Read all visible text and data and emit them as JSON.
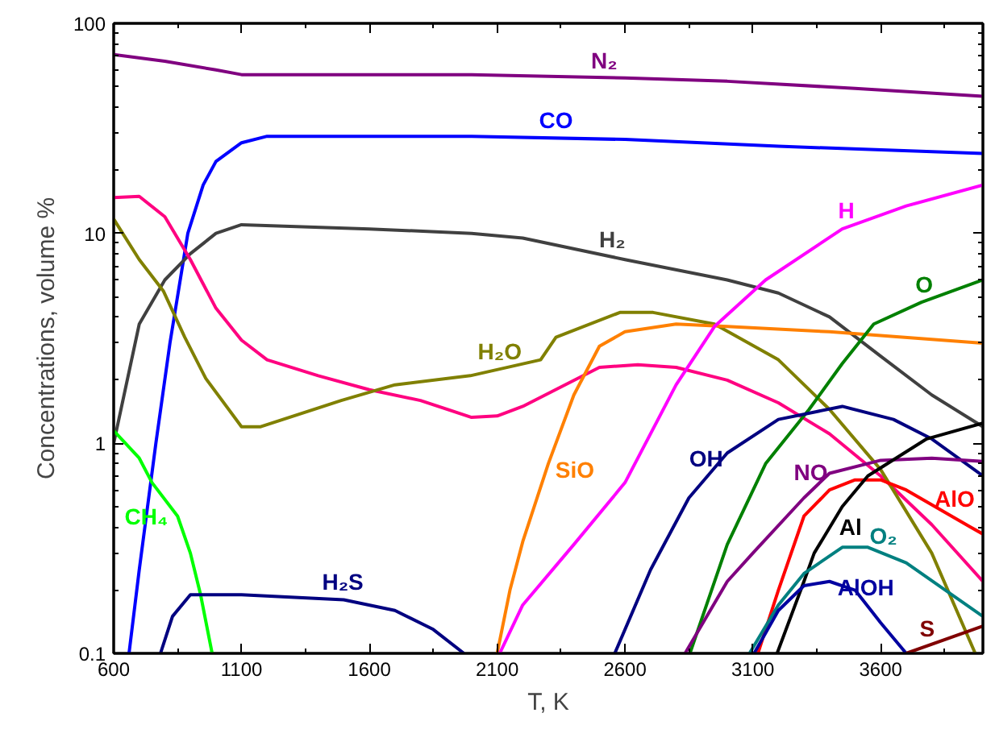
{
  "chart_data": {
    "type": "line",
    "xlabel": "T, K",
    "ylabel": "Concentrations, volume %",
    "log": "y",
    "grid": false,
    "marker": "none",
    "line_style": "solid",
    "xlim": [
      600,
      4000
    ],
    "xticks": [
      600,
      1100,
      1600,
      2100,
      2600,
      3100,
      3600
    ],
    "ylim": [
      0.1,
      100
    ],
    "yticks": [
      0.1,
      1,
      10,
      100
    ],
    "series": [
      {
        "color": "#800080",
        "x": [
          600,
          800,
          1000,
          1100,
          2000,
          2600,
          3000,
          3500,
          4000
        ],
        "values": [
          71,
          66,
          60,
          57,
          57,
          55,
          53,
          49,
          45
        ]
      },
      {
        "color": "#0000ff",
        "x": [
          660,
          700,
          765,
          820,
          890,
          950,
          1000,
          1100,
          1200,
          2000,
          2600,
          3200,
          4000
        ],
        "values": [
          0.1,
          0.25,
          1,
          3,
          10,
          17,
          22,
          27,
          29,
          29,
          28,
          26,
          24
        ]
      },
      {
        "color": "#404040",
        "x": [
          600,
          700,
          800,
          900,
          1000,
          1100,
          1600,
          2000,
          2200,
          2600,
          3000,
          3200,
          3400,
          3600,
          3800,
          4000
        ],
        "values": [
          1,
          3.7,
          6,
          8,
          10,
          11,
          10.5,
          10,
          9.5,
          7.5,
          6,
          5.2,
          4,
          2.6,
          1.7,
          1.2
        ]
      },
      {
        "color": "#ff0080",
        "x": [
          600,
          700,
          800,
          900,
          1000,
          1100,
          1200,
          1400,
          1600,
          1800,
          2000,
          2100,
          2200,
          2500,
          2650,
          2800,
          3000,
          3200,
          3400,
          3600,
          3800,
          4000
        ],
        "values": [
          14.8,
          15,
          12,
          7.5,
          4.4,
          3.1,
          2.5,
          2.1,
          1.8,
          1.6,
          1.33,
          1.35,
          1.5,
          2.3,
          2.37,
          2.3,
          2,
          1.56,
          1.11,
          0.7,
          0.41,
          0.22
        ]
      },
      {
        "color": "#808000",
        "x": [
          600,
          700,
          795,
          878,
          960,
          1100,
          1175,
          1490,
          1700,
          1995,
          2270,
          2330,
          2580,
          2710,
          2950,
          3200,
          3400,
          3600,
          3800,
          3970
        ],
        "values": [
          11.7,
          7.5,
          5.3,
          3.2,
          2.04,
          1.2,
          1.2,
          1.6,
          1.9,
          2.1,
          2.5,
          3.2,
          4.2,
          4.2,
          3.7,
          2.5,
          1.45,
          0.75,
          0.3,
          0.1
        ]
      },
      {
        "color": "#ff8000",
        "x": [
          2100,
          2150,
          2200,
          2300,
          2400,
          2500,
          2600,
          2800,
          3000,
          3400,
          4000
        ],
        "values": [
          0.1,
          0.2,
          0.34,
          0.8,
          1.7,
          2.9,
          3.4,
          3.7,
          3.6,
          3.4,
          3.0
        ]
      },
      {
        "color": "#ff00ff",
        "x": [
          2110,
          2200,
          2400,
          2600,
          2800,
          2950,
          3150,
          3450,
          3700,
          4000
        ],
        "values": [
          0.1,
          0.17,
          0.33,
          0.65,
          1.9,
          3.6,
          6,
          10.5,
          13.5,
          17
        ]
      },
      {
        "color": "#008000",
        "x": [
          2854,
          3000,
          3150,
          3320,
          3450,
          3573,
          3760,
          4000
        ],
        "values": [
          0.1,
          0.33,
          0.8,
          1.45,
          2.4,
          3.7,
          4.7,
          6
        ]
      },
      {
        "color": "#000080",
        "x": [
          2560,
          2700,
          2850,
          3000,
          3200,
          3450,
          3650,
          3800,
          4000
        ],
        "values": [
          0.1,
          0.25,
          0.55,
          0.9,
          1.3,
          1.5,
          1.3,
          1.05,
          0.7
        ]
      },
      {
        "color": "#800080",
        "x": [
          2835,
          3000,
          3100,
          3300,
          3400,
          3600,
          3800,
          4000
        ],
        "values": [
          0.1,
          0.22,
          0.3,
          0.55,
          0.72,
          0.83,
          0.85,
          0.82
        ]
      },
      {
        "color": "#ff0000",
        "x": [
          3120,
          3200,
          3300,
          3400,
          3500,
          3600,
          3700,
          3950,
          4000
        ],
        "values": [
          0.1,
          0.2,
          0.45,
          0.6,
          0.67,
          0.67,
          0.6,
          0.4,
          0.37
        ]
      },
      {
        "color": "#000000",
        "x": [
          3195,
          3300,
          3340,
          3450,
          3550,
          3780,
          4000
        ],
        "values": [
          0.1,
          0.22,
          0.3,
          0.5,
          0.7,
          1.05,
          1.25
        ]
      },
      {
        "color": "#008080",
        "x": [
          3087,
          3200,
          3300,
          3450,
          3550,
          3700,
          4000
        ],
        "values": [
          0.1,
          0.17,
          0.24,
          0.32,
          0.32,
          0.27,
          0.15
        ]
      },
      {
        "color": "#0000a0",
        "x": [
          3105,
          3200,
          3300,
          3400,
          3500,
          3600,
          3700
        ],
        "values": [
          0.1,
          0.16,
          0.21,
          0.22,
          0.2,
          0.14,
          0.1
        ]
      },
      {
        "color": "#800000",
        "x": [
          3700,
          4000
        ],
        "values": [
          0.1,
          0.135
        ]
      },
      {
        "color": "#00ff00",
        "x": [
          600,
          700,
          750,
          850,
          900,
          940,
          985
        ],
        "values": [
          1.15,
          0.85,
          0.65,
          0.45,
          0.3,
          0.19,
          0.1
        ]
      },
      {
        "color": "#000080",
        "x": [
          783,
          830,
          900,
          1100,
          1500,
          1700,
          1850,
          1970
        ],
        "values": [
          0.1,
          0.15,
          0.19,
          0.19,
          0.18,
          0.16,
          0.13,
          0.1
        ]
      }
    ],
    "annotations": [
      {
        "text": "N₂",
        "x": 2519,
        "y": 55
      },
      {
        "text": "CO",
        "x": 2330,
        "y": 28.5
      },
      {
        "text": "H₂",
        "x": 2550,
        "y": 7.7
      },
      {
        "text": "H",
        "x": 3466,
        "y": 10.6
      },
      {
        "text": "O",
        "x": 3770,
        "y": 4.7
      },
      {
        "text": "H₂O",
        "x": 2110,
        "y": 2.26
      },
      {
        "text": "SiO",
        "x": 2290,
        "y": 0.75
      },
      {
        "text": "CH₄",
        "x": 850,
        "y": 0.45
      },
      {
        "text": "H₂S",
        "x": 1496,
        "y": 0.18
      },
      {
        "text": "OH",
        "x": 2917,
        "y": 0.7
      },
      {
        "text": "NO",
        "x": 3327,
        "y": 0.6
      },
      {
        "text": "Al",
        "x": 3400,
        "y": 0.4
      },
      {
        "text": "AlO",
        "x": 3889,
        "y": 0.45
      },
      {
        "text": "O₂",
        "x": 3611,
        "y": 0.3
      },
      {
        "text": "AlOH",
        "x": 3542,
        "y": 0.17
      },
      {
        "text": "S",
        "x": 3782,
        "y": 0.108
      }
    ]
  }
}
